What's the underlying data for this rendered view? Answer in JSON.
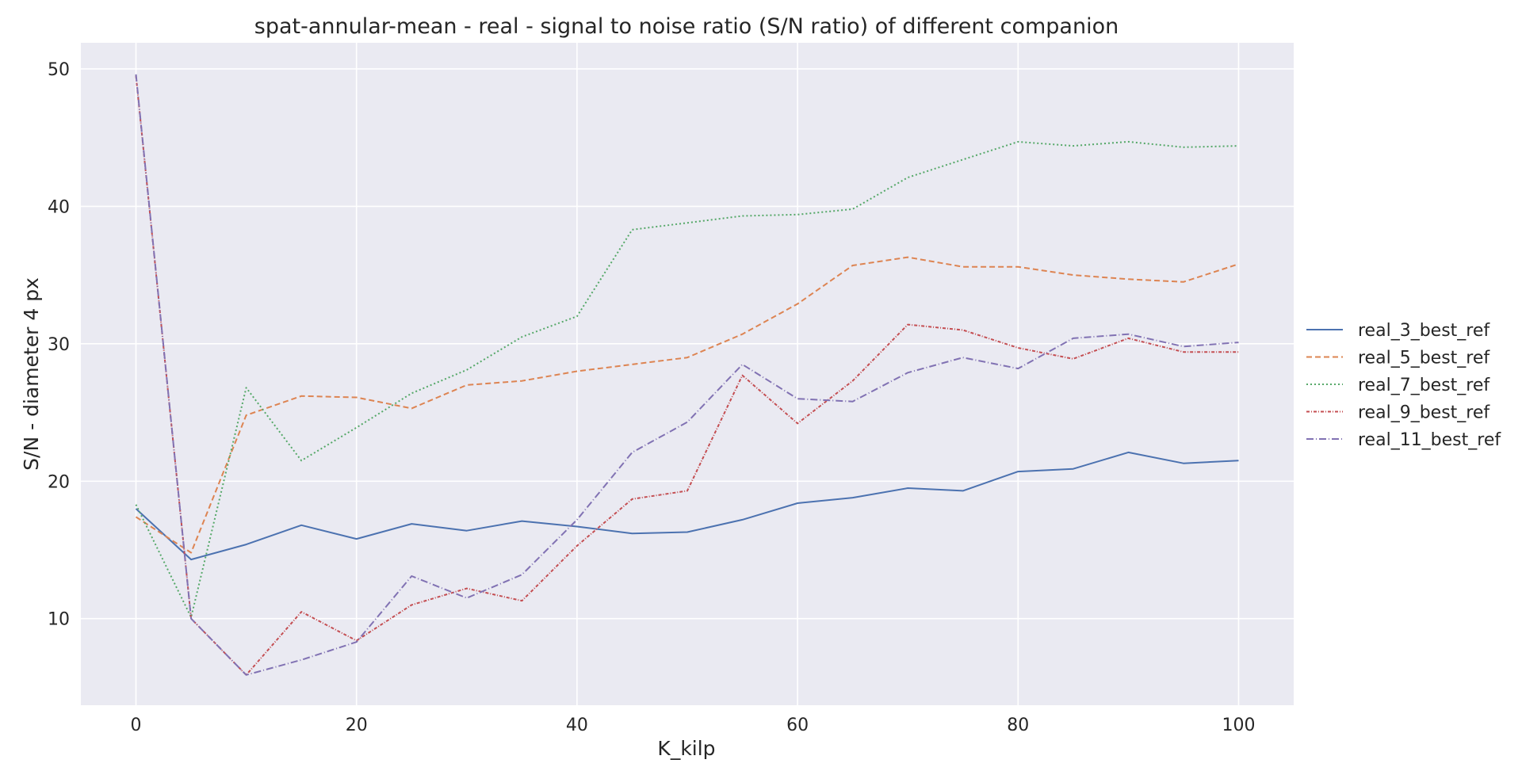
{
  "chart_data": {
    "type": "line",
    "title": "spat-annular-mean - real - signal to noise ratio (S/N ratio) of different companion",
    "xlabel": "K_kilp",
    "ylabel": "S/N - diameter 4 px",
    "xlim": [
      -5,
      105
    ],
    "ylim": [
      3.7,
      51.9
    ],
    "xticks": [
      0,
      20,
      40,
      60,
      80,
      100
    ],
    "yticks": [
      10,
      20,
      30,
      40,
      50
    ],
    "grid": true,
    "legend_position": "right",
    "x": [
      0,
      5,
      10,
      15,
      20,
      25,
      30,
      35,
      40,
      45,
      50,
      55,
      60,
      65,
      70,
      75,
      80,
      85,
      90,
      95,
      100
    ],
    "series": [
      {
        "name": "real_3_best_ref",
        "color": "#4c72b0",
        "dash": "",
        "values": [
          18.0,
          14.3,
          15.4,
          16.8,
          15.8,
          16.9,
          16.4,
          17.1,
          16.7,
          16.2,
          16.3,
          17.2,
          18.4,
          18.8,
          19.5,
          19.3,
          20.7,
          20.9,
          22.1,
          21.3,
          21.5
        ]
      },
      {
        "name": "real_5_best_ref",
        "color": "#dd8452",
        "dash": "7,4",
        "values": [
          17.4,
          14.8,
          24.8,
          26.2,
          26.1,
          25.3,
          27.0,
          27.3,
          28.0,
          28.5,
          29.0,
          30.7,
          32.9,
          35.7,
          36.3,
          35.6,
          35.6,
          35.0,
          34.7,
          34.5,
          35.8
        ]
      },
      {
        "name": "real_7_best_ref",
        "color": "#55a868",
        "dash": "2,3",
        "values": [
          18.3,
          10.1,
          26.8,
          21.5,
          23.9,
          26.4,
          28.1,
          30.5,
          32.0,
          38.3,
          38.8,
          39.3,
          39.4,
          39.8,
          42.1,
          43.4,
          44.7,
          44.4,
          44.7,
          44.3,
          44.4
        ]
      },
      {
        "name": "real_9_best_ref",
        "color": "#c44e52",
        "dash": "4,2,1,2",
        "values": [
          49.5,
          10.0,
          5.9,
          10.5,
          8.4,
          11.0,
          12.2,
          11.3,
          15.3,
          18.7,
          19.3,
          27.7,
          24.2,
          27.3,
          31.4,
          31.0,
          29.7,
          28.9,
          30.4,
          29.4,
          29.4
        ]
      },
      {
        "name": "real_11_best_ref",
        "color": "#8172b3",
        "dash": "9,3,1,3",
        "values": [
          49.6,
          10.0,
          5.9,
          7.0,
          8.3,
          13.1,
          11.5,
          13.2,
          17.2,
          22.1,
          24.3,
          28.5,
          26.0,
          25.8,
          27.9,
          29.0,
          28.2,
          30.4,
          30.7,
          29.8,
          30.1
        ]
      }
    ]
  }
}
